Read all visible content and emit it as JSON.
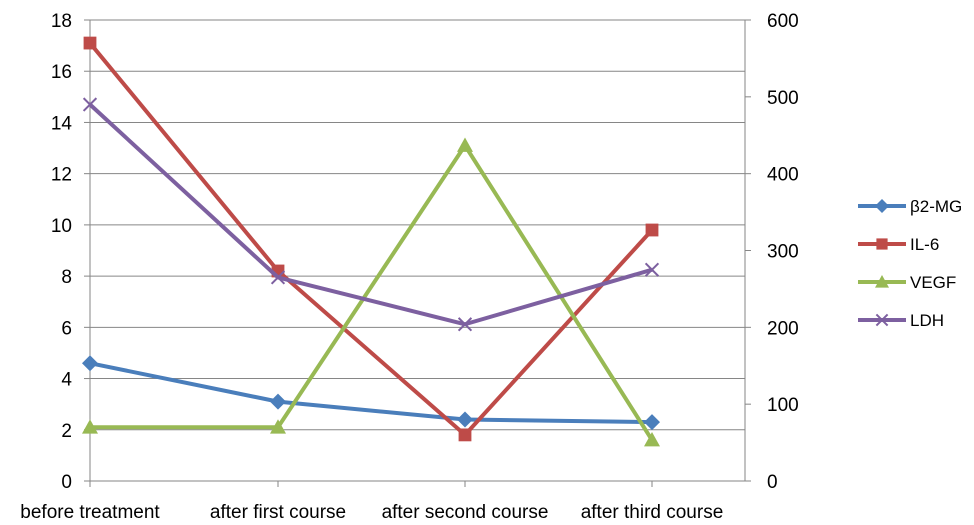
{
  "chart_data": {
    "type": "line",
    "categories": [
      "before treatment",
      "after first course",
      "after second course",
      "after third course"
    ],
    "y_left": {
      "min": 0,
      "max": 18,
      "step": 2,
      "ticks": [
        "0",
        "2",
        "4",
        "6",
        "8",
        "10",
        "12",
        "14",
        "16",
        "18"
      ]
    },
    "y_right": {
      "min": 0,
      "max": 600,
      "step": 100,
      "ticks": [
        "0",
        "100",
        "200",
        "300",
        "400",
        "500",
        "600"
      ]
    },
    "grid": true,
    "legend_position": "right",
    "series": [
      {
        "name": "β2-MG",
        "axis": "left",
        "color": "#4a7ebb",
        "marker": "diamond",
        "values": [
          4.6,
          3.1,
          2.4,
          2.3
        ]
      },
      {
        "name": "IL-6",
        "axis": "left",
        "color": "#be4b48",
        "marker": "square",
        "values": [
          17.1,
          8.2,
          1.8,
          9.8
        ]
      },
      {
        "name": "VEGF",
        "axis": "left",
        "color": "#98b954",
        "marker": "triangle",
        "values": [
          2.1,
          2.1,
          13.1,
          1.6
        ]
      },
      {
        "name": "LDH",
        "axis": "right",
        "color": "#7d60a0",
        "marker": "x",
        "values": [
          490,
          265,
          204,
          275
        ]
      }
    ]
  }
}
